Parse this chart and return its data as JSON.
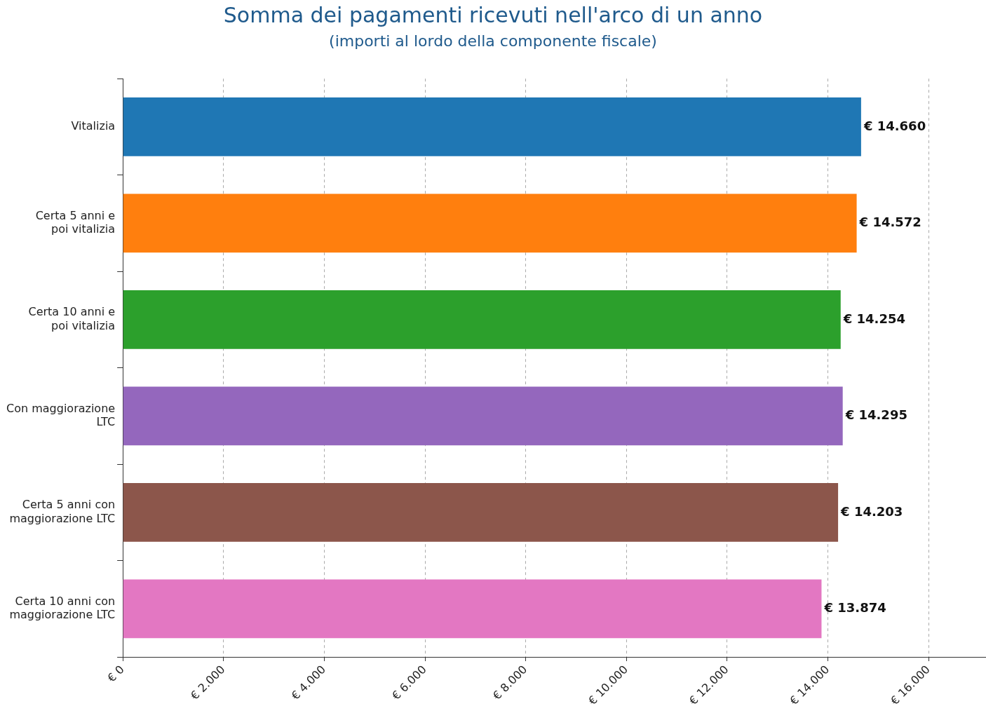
{
  "chart_data": {
    "type": "bar",
    "orientation": "horizontal",
    "title": "Somma dei pagamenti ricevuti nell'arco di un anno",
    "subtitle": "(importi al lordo della componente fiscale)",
    "categories": [
      "Vitalizia",
      "Certa 5 anni e\npoi vitalizia",
      "Certa 10 anni e\npoi vitalizia",
      "Con maggiorazione\nLTC",
      "Certa 5 anni con\nmaggiorazione LTC",
      "Certa 10 anni con\nmaggiorazione LTC"
    ],
    "values": [
      14660,
      14572,
      14254,
      14295,
      14203,
      13874
    ],
    "colors": [
      "#1f77b4",
      "#ff7f0e",
      "#2ca02c",
      "#9467bd",
      "#8c564b",
      "#e377c2"
    ],
    "value_labels": [
      "€ 14.660",
      "€ 14.572",
      "€ 14.254",
      "€ 14.295",
      "€ 14.203",
      "€ 13.874"
    ],
    "xlim": [
      0,
      17140
    ],
    "xticks": [
      {
        "value": 0,
        "label": "€ 0"
      },
      {
        "value": 2000,
        "label": "€ 2.000"
      },
      {
        "value": 4000,
        "label": "€ 4.000"
      },
      {
        "value": 6000,
        "label": "€ 6.000"
      },
      {
        "value": 8000,
        "label": "€ 8.000"
      },
      {
        "value": 10000,
        "label": "€ 10.000"
      },
      {
        "value": 12000,
        "label": "€ 12.000"
      },
      {
        "value": 14000,
        "label": "€ 14.000"
      },
      {
        "value": 16000,
        "label": "€ 16.000"
      }
    ],
    "grid": "x",
    "legend": false
  }
}
